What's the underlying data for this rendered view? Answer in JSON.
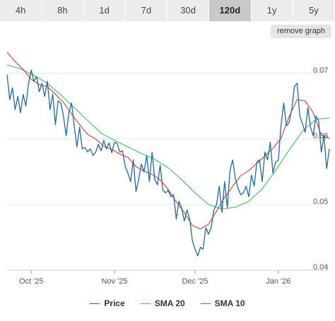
{
  "tabs": [
    {
      "label": "4h",
      "active": false
    },
    {
      "label": "8h",
      "active": false
    },
    {
      "label": "1d",
      "active": false
    },
    {
      "label": "7d",
      "active": false
    },
    {
      "label": "30d",
      "active": false
    },
    {
      "label": "120d",
      "active": true
    },
    {
      "label": "1y",
      "active": false
    },
    {
      "label": "5y",
      "active": false
    }
  ],
  "remove_graph_label": "remove graph",
  "colors": {
    "price": "#1f6aa5",
    "sma20": "#40c060",
    "sma10": "#e53935"
  },
  "chart_data": {
    "type": "line",
    "title": "",
    "xlabel": "",
    "ylabel": "",
    "xlim": [
      0,
      120
    ],
    "ylim": [
      0.04,
      0.0742
    ],
    "yticks": [
      0.04,
      0.05,
      0.06,
      0.07
    ],
    "ytick_labels": [
      "0.04",
      "0.05",
      "0.06",
      "0.07"
    ],
    "xticks": [
      {
        "x": 9,
        "label": "Oct '25"
      },
      {
        "x": 40,
        "label": "Nov '25"
      },
      {
        "x": 70,
        "label": "Dec '25"
      },
      {
        "x": 101,
        "label": "Jan '26"
      }
    ],
    "grid": true,
    "legend_position": "bottom",
    "series": [
      {
        "name": "Price",
        "color": "#1f6aa5",
        "x": [
          0,
          1,
          2,
          3,
          4,
          5,
          6,
          7,
          8,
          9,
          10,
          11,
          12,
          13,
          14,
          15,
          16,
          17,
          18,
          19,
          20,
          21,
          22,
          23,
          24,
          25,
          26,
          27,
          28,
          29,
          30,
          31,
          32,
          33,
          34,
          35,
          36,
          37,
          38,
          39,
          40,
          41,
          42,
          43,
          44,
          45,
          46,
          47,
          48,
          49,
          50,
          51,
          52,
          53,
          54,
          55,
          56,
          57,
          58,
          59,
          60,
          61,
          62,
          63,
          64,
          65,
          66,
          67,
          68,
          69,
          70,
          71,
          72,
          73,
          74,
          75,
          76,
          77,
          78,
          79,
          80,
          81,
          82,
          83,
          84,
          85,
          86,
          87,
          88,
          89,
          90,
          91,
          92,
          93,
          94,
          95,
          96,
          97,
          98,
          99,
          100,
          101,
          102,
          103,
          104,
          105,
          106,
          107,
          108,
          109,
          110,
          111,
          112,
          113,
          114,
          115,
          116,
          117,
          118,
          119,
          120
        ],
        "y": [
          0.0698,
          0.066,
          0.0678,
          0.0645,
          0.0665,
          0.064,
          0.0668,
          0.065,
          0.0685,
          0.0705,
          0.0688,
          0.0695,
          0.0672,
          0.0685,
          0.0665,
          0.0688,
          0.0645,
          0.0668,
          0.0622,
          0.0658,
          0.0655,
          0.0635,
          0.0605,
          0.064,
          0.0655,
          0.062,
          0.0588,
          0.0618,
          0.0585,
          0.0587,
          0.058,
          0.0585,
          0.0575,
          0.058,
          0.0592,
          0.0582,
          0.0598,
          0.0585,
          0.0594,
          0.0579,
          0.0595,
          0.0593,
          0.058,
          0.0582,
          0.0558,
          0.0548,
          0.0535,
          0.0568,
          0.052,
          0.0538,
          0.0562,
          0.055,
          0.0575,
          0.0535,
          0.058,
          0.0538,
          0.053,
          0.056,
          0.0522,
          0.0518,
          0.0522,
          0.0512,
          0.0515,
          0.0478,
          0.0505,
          0.0495,
          0.0475,
          0.0492,
          0.0478,
          0.0445,
          0.0432,
          0.0422,
          0.0435,
          0.0432,
          0.0465,
          0.0455,
          0.0465,
          0.0492,
          0.05,
          0.0528,
          0.0488,
          0.0535,
          0.0495,
          0.0552,
          0.0568,
          0.054,
          0.0525,
          0.0515,
          0.0518,
          0.0528,
          0.0512,
          0.0545,
          0.0528,
          0.0565,
          0.0568,
          0.0535,
          0.058,
          0.0568,
          0.0595,
          0.0548,
          0.0565,
          0.0568,
          0.062,
          0.0655,
          0.062,
          0.0625,
          0.0645,
          0.068,
          0.0685,
          0.0635,
          0.0623,
          0.061,
          0.0648,
          0.0618,
          0.0605,
          0.0635,
          0.0628,
          0.058,
          0.0605,
          0.0555,
          0.0585
        ]
      },
      {
        "name": "SMA 20",
        "color": "#40c060",
        "x": [
          0,
          5,
          10,
          15,
          20,
          25,
          30,
          35,
          40,
          45,
          50,
          55,
          60,
          65,
          70,
          75,
          80,
          85,
          90,
          95,
          100,
          105,
          110,
          115,
          120
        ],
        "y": [
          0.0713,
          0.0707,
          0.0697,
          0.0685,
          0.0667,
          0.0648,
          0.0628,
          0.0609,
          0.0598,
          0.0588,
          0.0578,
          0.0569,
          0.0556,
          0.0538,
          0.0518,
          0.05,
          0.0493,
          0.0496,
          0.0505,
          0.0524,
          0.0552,
          0.0583,
          0.0612,
          0.063,
          0.0632
        ]
      },
      {
        "name": "SMA 10",
        "color": "#e53935",
        "x": [
          0,
          3,
          6,
          9,
          12,
          15,
          18,
          21,
          24,
          27,
          30,
          33,
          36,
          39,
          42,
          45,
          48,
          51,
          54,
          57,
          60,
          63,
          66,
          69,
          72,
          75,
          78,
          81,
          84,
          87,
          90,
          93,
          96,
          99,
          102,
          105,
          108,
          111,
          114,
          117,
          120
        ],
        "y": [
          0.0732,
          0.0718,
          0.0706,
          0.0691,
          0.0683,
          0.068,
          0.0668,
          0.0656,
          0.0638,
          0.0622,
          0.0607,
          0.06,
          0.0589,
          0.0584,
          0.0577,
          0.0572,
          0.0558,
          0.0551,
          0.0546,
          0.0538,
          0.0523,
          0.0504,
          0.0488,
          0.0468,
          0.0463,
          0.047,
          0.049,
          0.0511,
          0.0528,
          0.0544,
          0.0552,
          0.0563,
          0.0574,
          0.0586,
          0.0601,
          0.0634,
          0.066,
          0.0658,
          0.064,
          0.0606,
          0.0601
        ]
      }
    ]
  }
}
